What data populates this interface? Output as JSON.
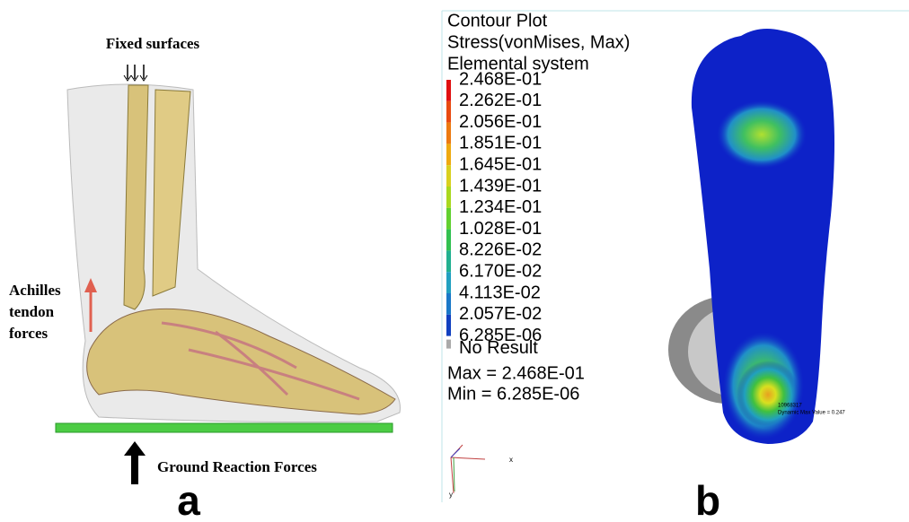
{
  "panel_a": {
    "fixed_label": "Fixed surfaces",
    "achilles_label": [
      "Achilles",
      "tendon",
      "forces"
    ],
    "ground_label": "Ground Reaction Forces",
    "letter": "a"
  },
  "panel_b": {
    "legend_title": [
      "Contour Plot",
      "Stress(vonMises, Max)",
      "Elemental system"
    ],
    "legend_values": [
      "2.468E-01",
      "2.262E-01",
      "2.056E-01",
      "1.851E-01",
      "1.645E-01",
      "1.439E-01",
      "1.234E-01",
      "1.028E-01",
      "8.226E-02",
      "6.170E-02",
      "4.113E-02",
      "2.057E-02",
      "6.285E-06"
    ],
    "no_result": "No Result",
    "max_label": "Max =  2.468E-01",
    "min_label": "Min =  6.285E-06",
    "node_id": "10968317",
    "max_annotation": "Dynamic Max Value = 0.247",
    "axis_x": "x",
    "axis_y": "y",
    "letter": "b"
  }
}
